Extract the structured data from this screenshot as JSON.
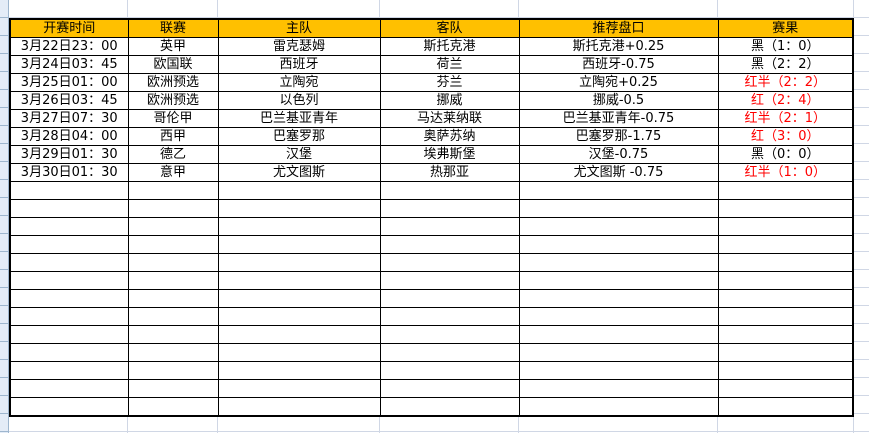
{
  "sheet": {
    "headers": [
      "开赛时间",
      "联赛",
      "主队",
      "客队",
      "推荐盘口",
      "赛果"
    ],
    "rows": [
      {
        "time": "3月22日23：00",
        "league": "英甲",
        "home": "雷克瑟姆",
        "away": "斯托克港",
        "tip": "斯托克港+0.25",
        "result": "黑（1：0）",
        "result_color": "#000000"
      },
      {
        "time": "3月24日03：45",
        "league": "欧国联",
        "home": "西班牙",
        "away": "荷兰",
        "tip": "西班牙-0.75",
        "result": "黑（2：2）",
        "result_color": "#000000"
      },
      {
        "time": "3月25日01：00",
        "league": "欧洲预选",
        "home": "立陶宛",
        "away": "芬兰",
        "tip": "立陶宛+0.25",
        "result": "红半（2：2）",
        "result_color": "#ff0000"
      },
      {
        "time": "3月26日03：45",
        "league": "欧洲预选",
        "home": "以色列",
        "away": "挪威",
        "tip": "挪威-0.5",
        "result": "红（2：4）",
        "result_color": "#ff0000"
      },
      {
        "time": "3月27日07：30",
        "league": "哥伦甲",
        "home": "巴兰基亚青年",
        "away": "马达莱纳联",
        "tip": "巴兰基亚青年-0.75",
        "result": "红半（2：1）",
        "result_color": "#ff0000"
      },
      {
        "time": "3月28日04：00",
        "league": "西甲",
        "home": "巴塞罗那",
        "away": "奥萨苏纳",
        "tip": "巴塞罗那-1.75",
        "result": "红（3：0）",
        "result_color": "#ff0000"
      },
      {
        "time": "3月29日01：30",
        "league": "德乙",
        "home": "汉堡",
        "away": "埃弗斯堡",
        "tip": "汉堡-0.75",
        "result": "黑（0：0）",
        "result_color": "#000000"
      },
      {
        "time": "3月30日01：30",
        "league": "意甲",
        "home": "尤文图斯",
        "away": "热那亚",
        "tip": "尤文图斯 -0.75",
        "result": "红半（1：0）",
        "result_color": "#ff0000"
      }
    ],
    "empty_rows": 13,
    "header_color": "#ffc000"
  }
}
